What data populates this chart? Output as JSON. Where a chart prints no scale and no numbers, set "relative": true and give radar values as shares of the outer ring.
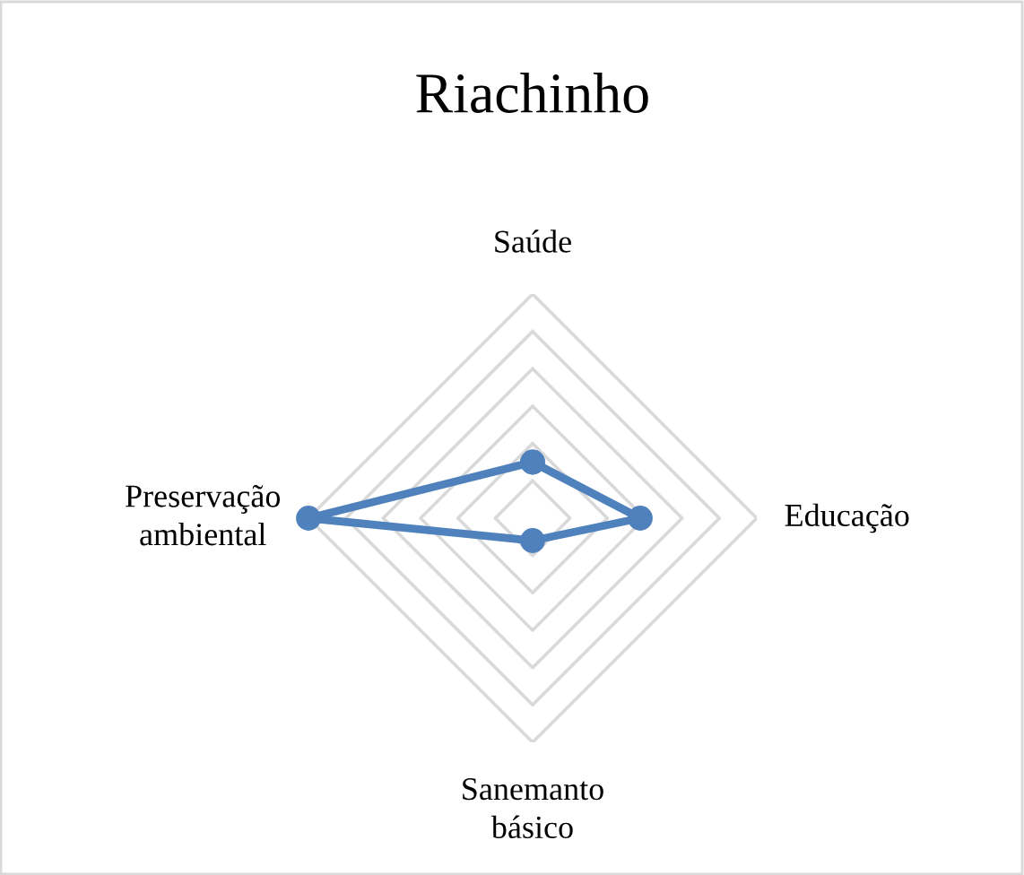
{
  "chart_data": {
    "type": "radar",
    "title": "Riachinho",
    "relative": true,
    "grid": true,
    "marker": "circle",
    "legend": false,
    "categories": [
      "Saúde",
      "Educação",
      "Sanemanto\nbásico",
      "Preservação\nambiental"
    ],
    "series": [
      {
        "color": "#4f81bd",
        "values": [
          0.25,
          0.48,
          0.1,
          1.0
        ]
      }
    ]
  }
}
